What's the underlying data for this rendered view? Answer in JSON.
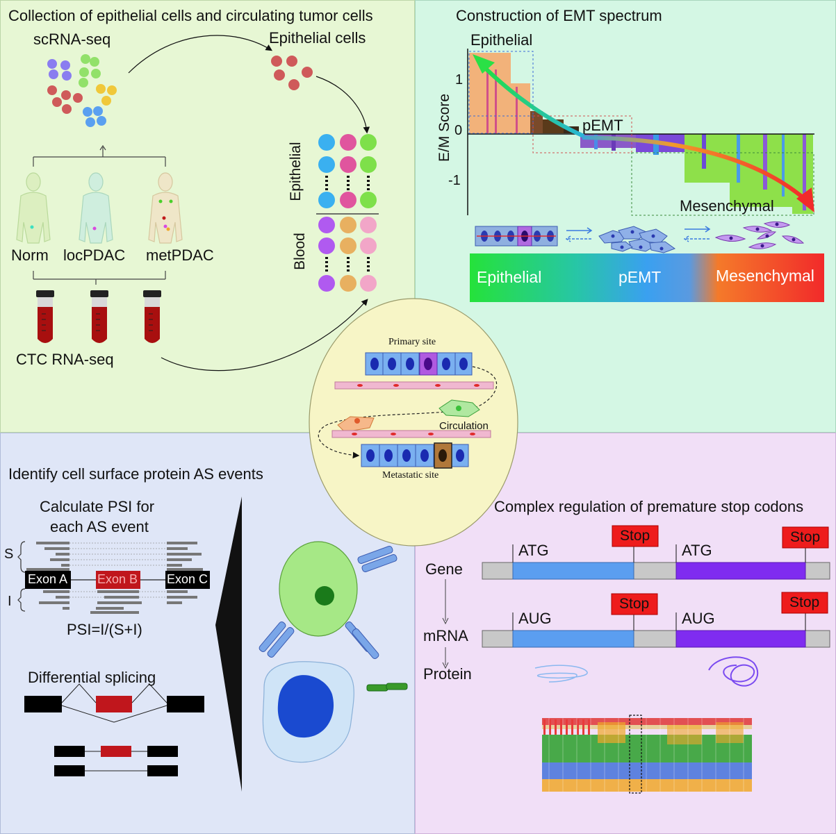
{
  "panels": {
    "top_left": {
      "title": "Collection of epithelial cells and circulating tumor cells",
      "scrna_label": "scRNA-seq",
      "epithelial_cells_label": "Epithelial cells",
      "groups": [
        "Norm",
        "locPDAC",
        "metPDAC"
      ],
      "ctc_label": "CTC RNA-seq",
      "matrix_labels": {
        "epithelial": "Epithelial",
        "blood": "Blood"
      }
    },
    "top_right": {
      "title": "Construction of EMT spectrum",
      "y_axis_label": "E/M Score",
      "y_ticks": [
        "1",
        "0",
        "-1"
      ],
      "annotations": {
        "epithelial": "Epithelial",
        "pemt": "pEMT",
        "mesenchymal": "Mesenchymal"
      },
      "gradient_bar": {
        "left": "Epithelial",
        "middle": "pEMT",
        "right": "Mesenchymal"
      }
    },
    "center": {
      "primary_site": "Primary site",
      "circulation": "Circulation",
      "metastatic_site": "Metastatic site"
    },
    "bottom_left": {
      "title": "Identify cell surface protein AS events",
      "psi_title_line1": "Calculate PSI for",
      "psi_title_line2": "each AS event",
      "s_label": "S",
      "i_label": "I",
      "exons": [
        "Exon A",
        "Exon B",
        "Exon C"
      ],
      "psi_formula": "PSI=I/(S+I)",
      "diff_splicing": "Differential splicing"
    },
    "bottom_right": {
      "title": "Complex regulation of premature stop codons",
      "row_labels": {
        "gene": "Gene",
        "mrna": "mRNA",
        "protein": "Protein"
      },
      "start_codons": {
        "gene": "ATG",
        "mrna": "AUG"
      },
      "stop_label": "Stop"
    }
  },
  "colors": {
    "top_left_bg": "#e7f7d4",
    "top_right_bg": "#d4f7e4",
    "bottom_left_bg": "#dfe6f7",
    "bottom_right_bg": "#f1dff7",
    "center_oval": "#f7f5c6",
    "stop_red": "#ee1c1c",
    "exon_blue": "#5b9ef0",
    "exon_purple": "#7f2cf0"
  }
}
